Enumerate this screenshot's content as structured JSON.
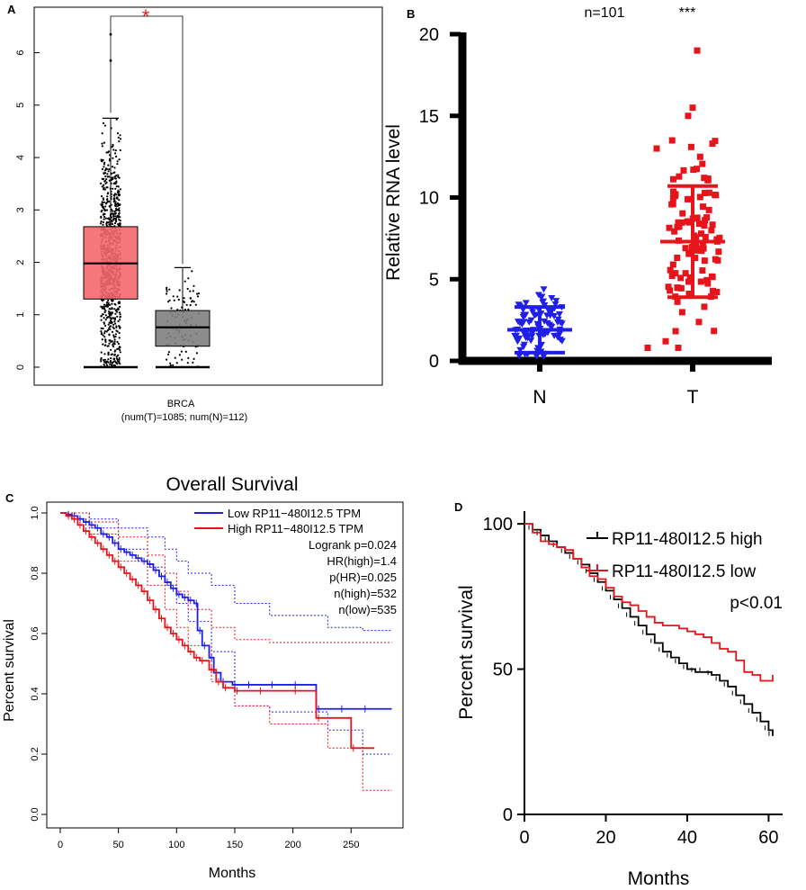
{
  "chart_data": [
    {
      "panel": "A",
      "type": "box",
      "title": "",
      "xlabel": "BRCA",
      "xlabel_sub": "(num(T)=1085; num(N)=112)",
      "ylabel": "",
      "ylim": [
        0,
        6.8
      ],
      "yticks": [
        0,
        1,
        2,
        3,
        4,
        5,
        6
      ],
      "significance": "*",
      "colors": {
        "tumor": "#f4686b",
        "normal": "#7f7f7f",
        "sig": "#e31a1c"
      },
      "series": [
        {
          "name": "T",
          "n": 1085,
          "min": 0,
          "q1": 1.3,
          "median": 1.98,
          "q3": 2.68,
          "whisker_high": 4.75,
          "outliers": [
            5.85,
            6.35
          ]
        },
        {
          "name": "N",
          "n": 112,
          "min": 0,
          "q1": 0.4,
          "median": 0.76,
          "q3": 1.08,
          "whisker_high": 1.9,
          "outliers": []
        }
      ]
    },
    {
      "panel": "B",
      "type": "scatter",
      "title": "n=101",
      "significance": "***",
      "xlabel": "",
      "ylabel": "Relative RNA level",
      "categories": [
        "N",
        "T"
      ],
      "ylim": [
        0,
        20
      ],
      "yticks": [
        0,
        5,
        10,
        15,
        20
      ],
      "colors": {
        "N": "#1f1fe6",
        "T": "#e6141b"
      },
      "series": [
        {
          "name": "N",
          "marker": "triangle-down",
          "mean": 1.9,
          "sd": 1.4,
          "min": 0.3,
          "max": 4.7
        },
        {
          "name": "T",
          "marker": "square",
          "mean": 7.3,
          "sd": 3.4,
          "min": 0.8,
          "max": 19.0
        }
      ]
    },
    {
      "panel": "C",
      "type": "line",
      "title": "Overall Survival",
      "xlabel": "Months",
      "ylabel": "Percent survival",
      "xlim": [
        0,
        290
      ],
      "ylim": [
        0,
        1.0
      ],
      "xticks": [
        0,
        50,
        100,
        150,
        200,
        250
      ],
      "yticks": [
        0.0,
        0.2,
        0.4,
        0.6,
        0.8,
        1.0
      ],
      "stats": [
        "Logrank p=0.024",
        "HR(high)=1.4",
        "p(HR)=0.025",
        "n(high)=532",
        "n(low)=535"
      ],
      "series": [
        {
          "name": "Low RP11−480I12.5 TPM",
          "color": "#1f1fe6",
          "x": [
            0,
            5,
            10,
            15,
            20,
            25,
            30,
            35,
            40,
            45,
            50,
            55,
            60,
            65,
            70,
            75,
            80,
            85,
            90,
            95,
            100,
            105,
            110,
            115,
            118,
            122,
            128,
            132,
            138,
            148,
            160,
            180,
            200,
            220,
            240,
            260,
            285
          ],
          "y": [
            1.0,
            0.995,
            0.99,
            0.98,
            0.97,
            0.96,
            0.95,
            0.93,
            0.92,
            0.9,
            0.88,
            0.87,
            0.86,
            0.85,
            0.84,
            0.83,
            0.81,
            0.79,
            0.77,
            0.75,
            0.73,
            0.72,
            0.71,
            0.7,
            0.61,
            0.56,
            0.52,
            0.47,
            0.44,
            0.43,
            0.43,
            0.43,
            0.43,
            0.35,
            0.35,
            0.35,
            0.35
          ]
        },
        {
          "name": "High RP11−480I12.5 TPM",
          "color": "#e6141b",
          "x": [
            0,
            5,
            10,
            15,
            20,
            25,
            30,
            35,
            40,
            45,
            50,
            55,
            60,
            65,
            70,
            75,
            80,
            85,
            90,
            95,
            100,
            105,
            110,
            115,
            120,
            128,
            134,
            140,
            150,
            170,
            200,
            220,
            250,
            270
          ],
          "y": [
            1.0,
            0.99,
            0.98,
            0.96,
            0.94,
            0.92,
            0.9,
            0.88,
            0.86,
            0.84,
            0.82,
            0.8,
            0.78,
            0.76,
            0.74,
            0.71,
            0.68,
            0.65,
            0.62,
            0.6,
            0.58,
            0.56,
            0.54,
            0.52,
            0.51,
            0.48,
            0.44,
            0.42,
            0.41,
            0.41,
            0.41,
            0.32,
            0.22,
            0.22
          ]
        }
      ],
      "ci_bands": [
        {
          "series": "Low RP11−480I12.5 TPM",
          "upper": [
            1.0,
            0.98,
            0.95,
            0.92,
            0.88,
            0.84,
            0.8,
            0.76,
            0.7,
            0.66,
            0.62,
            0.61,
            0.61
          ],
          "lower": [
            1.0,
            0.95,
            0.88,
            0.82,
            0.76,
            0.7,
            0.64,
            0.54,
            0.36,
            0.34,
            0.28,
            0.2,
            0.2
          ]
        },
        {
          "series": "High RP11−480I12.5 TPM",
          "upper": [
            1.0,
            0.97,
            0.92,
            0.86,
            0.8,
            0.74,
            0.68,
            0.62,
            0.58,
            0.57,
            0.57,
            0.57,
            0.57
          ],
          "lower": [
            1.0,
            0.93,
            0.84,
            0.76,
            0.68,
            0.62,
            0.56,
            0.44,
            0.36,
            0.3,
            0.22,
            0.08,
            0.08
          ]
        }
      ],
      "ci_x": [
        0,
        25,
        50,
        75,
        90,
        100,
        110,
        130,
        150,
        180,
        230,
        260,
        285
      ]
    },
    {
      "panel": "D",
      "type": "line",
      "title": "",
      "xlabel": "Months",
      "ylabel": "Percent survival",
      "xlim": [
        0,
        63
      ],
      "ylim": [
        0,
        105
      ],
      "xticks": [
        0,
        20,
        40,
        60
      ],
      "yticks": [
        0,
        50,
        100
      ],
      "pvalue": "p<0.01",
      "series": [
        {
          "name": "RP11-480I12.5 high",
          "color": "#000000",
          "x": [
            0,
            2,
            4,
            6,
            8,
            10,
            12,
            14,
            16,
            18,
            20,
            22,
            24,
            26,
            28,
            30,
            32,
            34,
            36,
            38,
            40,
            42,
            44,
            46,
            48,
            50,
            52,
            54,
            56,
            58,
            60,
            61
          ],
          "y": [
            100,
            98,
            96,
            94,
            92,
            90,
            88,
            86,
            83,
            80,
            77,
            74,
            71,
            68,
            65,
            62,
            59,
            56,
            54,
            52,
            50,
            49,
            49,
            48,
            46,
            44,
            41,
            38,
            35,
            32,
            29,
            27
          ]
        },
        {
          "name": "RP11-480I12.5 low",
          "color": "#e6141b",
          "x": [
            0,
            2,
            4,
            6,
            8,
            10,
            12,
            14,
            16,
            18,
            20,
            22,
            24,
            26,
            28,
            30,
            32,
            34,
            36,
            38,
            40,
            42,
            44,
            46,
            48,
            50,
            52,
            54,
            56,
            58,
            60,
            61
          ],
          "y": [
            100,
            97,
            94,
            93,
            92,
            91,
            88,
            85,
            82,
            81,
            78,
            75,
            73,
            72,
            70,
            68,
            66,
            65,
            65,
            64,
            63,
            62,
            61,
            59,
            57,
            56,
            53,
            49,
            48,
            46,
            46,
            48
          ]
        }
      ]
    }
  ]
}
